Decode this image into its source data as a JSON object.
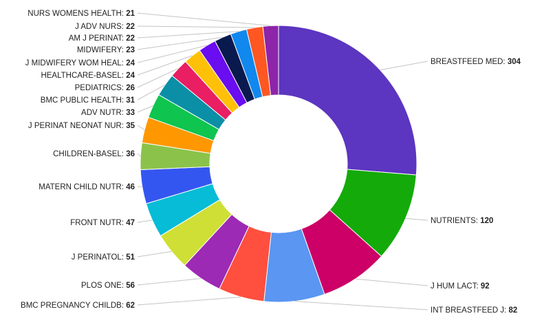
{
  "chart_data": {
    "type": "pie",
    "variant": "donut",
    "title": "",
    "series": [
      {
        "label": "BREASTFEED MED",
        "value": 304,
        "color": "#5c35c0"
      },
      {
        "label": "NUTRIENTS",
        "value": 120,
        "color": "#14aa0a"
      },
      {
        "label": "J HUM LACT",
        "value": 92,
        "color": "#cc0066"
      },
      {
        "label": "INT BREASTFEED J",
        "value": 82,
        "color": "#5a96f2"
      },
      {
        "label": "BMC PREGNANCY CHILDB",
        "value": 62,
        "color": "#ff4f3f"
      },
      {
        "label": "PLOS ONE",
        "value": 56,
        "color": "#9c2ab4"
      },
      {
        "label": "J PERINATOL",
        "value": 51,
        "color": "#cfdf36"
      },
      {
        "label": "FRONT NUTR",
        "value": 47,
        "color": "#06bcd6"
      },
      {
        "label": "MATERN CHILD NUTR",
        "value": 46,
        "color": "#3456f0"
      },
      {
        "label": "CHILDREN-BASEL",
        "value": 36,
        "color": "#8bc34a"
      },
      {
        "label": "J PERINAT NEONAT NUR",
        "value": 35,
        "color": "#ff9800"
      },
      {
        "label": "ADV NUTR",
        "value": 33,
        "color": "#0fc44f"
      },
      {
        "label": "BMC PUBLIC HEALTH",
        "value": 31,
        "color": "#0a8fa6"
      },
      {
        "label": "PEDIATRICS",
        "value": 26,
        "color": "#e91e63"
      },
      {
        "label": "HEALTHCARE-BASEL",
        "value": 24,
        "color": "#ffc107"
      },
      {
        "label": "J MIDWIFERY WOM HEAL",
        "value": 24,
        "color": "#6a0df0"
      },
      {
        "label": "MIDWIFERY",
        "value": 23,
        "color": "#0a1a4e"
      },
      {
        "label": "AM J PERINAT",
        "value": 22,
        "color": "#1188ee"
      },
      {
        "label": "J ADV NURS",
        "value": 22,
        "color": "#ff5722"
      },
      {
        "label": "NURS WOMENS HEALTH",
        "value": 21,
        "color": "#8e24aa"
      }
    ],
    "legend": "none",
    "data_labels": "outside with leader lines"
  }
}
